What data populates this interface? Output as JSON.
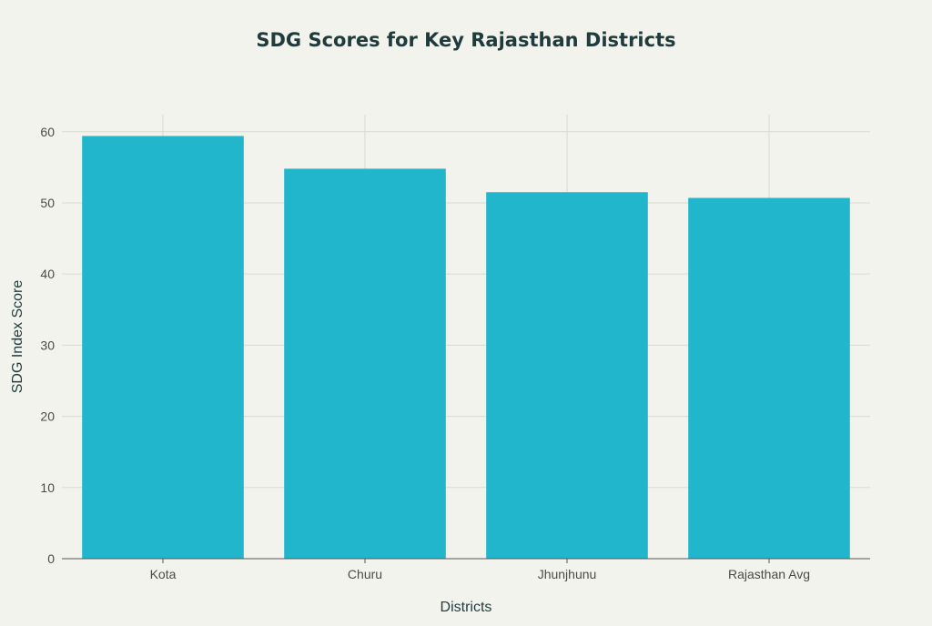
{
  "chart_data": {
    "type": "bar",
    "title": "SDG Scores for Key Rajasthan Districts",
    "xlabel": "Districts",
    "ylabel": "SDG Index Score",
    "categories": [
      "Kota",
      "Churu",
      "Jhunjhunu",
      "Rajasthan Avg"
    ],
    "values": [
      59.4,
      54.8,
      51.5,
      50.7
    ],
    "ylim": [
      0,
      62.4
    ],
    "yticks": [
      0,
      10,
      20,
      30,
      40,
      50,
      60
    ],
    "grid": true,
    "legend": "none",
    "bar_color": "#21b6cc"
  }
}
